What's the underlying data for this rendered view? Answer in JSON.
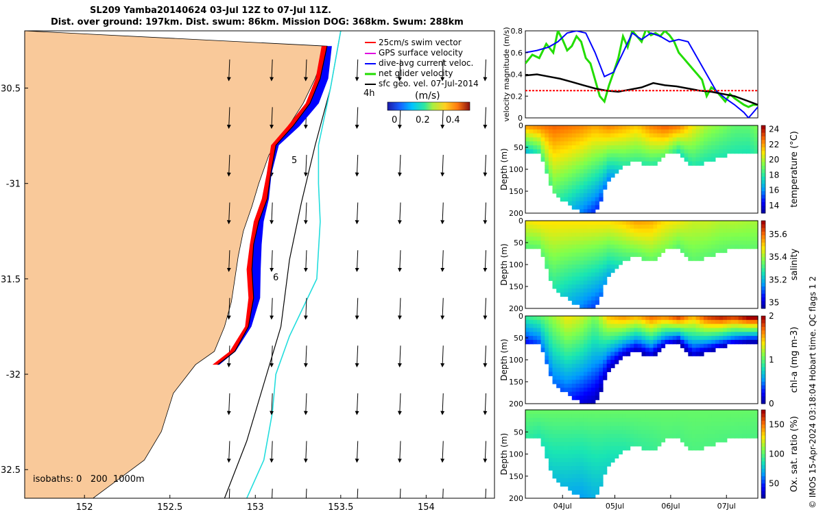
{
  "title": {
    "line1": "SL209 Yamba20140624 03-Jul 12Z to 07-Jul 11Z.",
    "line2": "Dist. over ground: 197km. Dist. swum: 86km. Mission DOG: 368km. Swum: 288km"
  },
  "colors": {
    "land": "#f9c99a",
    "ocean": "#ffffff",
    "swim": "#ff0000",
    "gps": "#e000e0",
    "dive_avg": "#0000ff",
    "net": "#22dd00",
    "sfc_geo": "#000000",
    "isobath_200": "#000000",
    "isobath_1000": "#22dddd"
  },
  "chart_data": [
    {
      "id": "map",
      "type": "scatter",
      "title": "SL209 Yamba20140624 03-Jul 12Z to 07-Jul 11Z.",
      "xlim": [
        151.65,
        154.4
      ],
      "ylim": [
        -32.65,
        -30.2
      ],
      "x_ticks": [
        152,
        152.5,
        153,
        153.5,
        154
      ],
      "y_ticks": [
        -30.5,
        -31,
        -31.5,
        -32,
        -32.5
      ],
      "x_tick_labels": [
        "152",
        "152.5",
        "153",
        "153.5",
        "154"
      ],
      "y_tick_labels": [
        "30.5",
        "-31",
        "31.5",
        "-32",
        "32.5"
      ],
      "legend": {
        "placement": "top-right",
        "entries": [
          "25cm/s swim vector",
          "GPS surface velocity",
          "dive-avg current veloc.",
          "net glider velocity",
          "sfc geo. vel. 07-Jul-2014"
        ]
      },
      "colorbar": {
        "label": "(m/s)",
        "ticks": [
          "0",
          "0.2",
          "0.4"
        ],
        "range": [
          0,
          0.5
        ]
      },
      "annotations": [
        "4h",
        "5",
        "6"
      ],
      "isobaths_label": "isobaths: 0   200  1000m",
      "coast": [
        [
          153.42,
          -30.28
        ],
        [
          153.35,
          -30.45
        ],
        [
          153.28,
          -30.58
        ],
        [
          153.18,
          -30.72
        ],
        [
          153.08,
          -30.85
        ],
        [
          153.02,
          -31.0
        ],
        [
          152.98,
          -31.12
        ],
        [
          152.93,
          -31.25
        ],
        [
          152.9,
          -31.38
        ],
        [
          152.88,
          -31.5
        ],
        [
          152.86,
          -31.62
        ],
        [
          152.82,
          -31.75
        ],
        [
          152.76,
          -31.88
        ],
        [
          152.65,
          -31.95
        ],
        [
          152.52,
          -32.1
        ],
        [
          152.45,
          -32.3
        ],
        [
          152.35,
          -32.45
        ],
        [
          152.2,
          -32.55
        ],
        [
          152.05,
          -32.65
        ]
      ],
      "track": [
        [
          153.42,
          -30.28
        ],
        [
          153.38,
          -30.45
        ],
        [
          153.32,
          -30.58
        ],
        [
          153.22,
          -30.7
        ],
        [
          153.12,
          -30.8
        ],
        [
          153.09,
          -30.95
        ],
        [
          153.07,
          -31.08
        ],
        [
          153.02,
          -31.2
        ],
        [
          152.99,
          -31.32
        ],
        [
          152.98,
          -31.45
        ],
        [
          152.99,
          -31.6
        ],
        [
          152.96,
          -31.75
        ],
        [
          152.88,
          -31.88
        ],
        [
          152.78,
          -31.95
        ]
      ],
      "isobath_200": [
        [
          153.5,
          -30.2
        ],
        [
          153.44,
          -30.5
        ],
        [
          153.35,
          -30.8
        ],
        [
          153.27,
          -31.1
        ],
        [
          153.2,
          -31.4
        ],
        [
          153.15,
          -31.75
        ],
        [
          153.05,
          -32.05
        ],
        [
          152.95,
          -32.35
        ],
        [
          152.82,
          -32.65
        ]
      ],
      "isobath_1000": [
        [
          153.5,
          -30.2
        ],
        [
          153.44,
          -30.5
        ],
        [
          153.37,
          -30.8
        ],
        [
          153.37,
          -31.0
        ],
        [
          153.38,
          -31.2
        ],
        [
          153.36,
          -31.5
        ],
        [
          153.2,
          -31.8
        ],
        [
          153.12,
          -32.0
        ],
        [
          153.1,
          -32.2
        ],
        [
          153.05,
          -32.45
        ],
        [
          152.95,
          -32.65
        ]
      ],
      "geo_vectors": {
        "lon": [
          152.85,
          153.1,
          153.3,
          153.6,
          153.85,
          154.1,
          154.35
        ],
        "lat": [
          -30.35,
          -30.6,
          -30.85,
          -31.1,
          -31.35,
          -31.6,
          -31.85,
          -32.1,
          -32.35,
          -32.6
        ],
        "u": -0.02,
        "v": -0.35
      }
    },
    {
      "id": "velocity",
      "type": "line",
      "ylabel": "velocity magnitude (m/s)",
      "xlim": [
        0,
        100
      ],
      "ylim": [
        0,
        0.8
      ],
      "y_ticks": [
        0,
        0.2,
        0.4,
        0.6,
        0.8
      ],
      "y_tick_labels": [
        "0",
        "0.2",
        "0.4",
        "0.6",
        "0.8"
      ],
      "series": [
        {
          "color": "#22dd00",
          "x": [
            0,
            3,
            6,
            9,
            12,
            14,
            16,
            18,
            20,
            22,
            24,
            26,
            28,
            30,
            32,
            34,
            36,
            38,
            40,
            42,
            44,
            46,
            48,
            50,
            52,
            54,
            56,
            58,
            60,
            62,
            64,
            66,
            68,
            70,
            72,
            74,
            76,
            78,
            80,
            82,
            84,
            86,
            88,
            90,
            92,
            94,
            96,
            98,
            100
          ],
          "y": [
            0.5,
            0.58,
            0.55,
            0.68,
            0.6,
            0.8,
            0.72,
            0.62,
            0.66,
            0.75,
            0.7,
            0.55,
            0.5,
            0.35,
            0.2,
            0.15,
            0.3,
            0.42,
            0.55,
            0.75,
            0.65,
            0.8,
            0.75,
            0.7,
            0.82,
            0.76,
            0.78,
            0.75,
            0.8,
            0.76,
            0.7,
            0.6,
            0.55,
            0.5,
            0.45,
            0.4,
            0.35,
            0.2,
            0.28,
            0.25,
            0.2,
            0.15,
            0.22,
            0.18,
            0.15,
            0.12,
            0.1,
            0.12,
            0.12
          ]
        },
        {
          "color": "#0000ff",
          "x": [
            0,
            5,
            10,
            14,
            18,
            22,
            26,
            30,
            34,
            38,
            42,
            46,
            50,
            54,
            58,
            62,
            66,
            70,
            74,
            78,
            82,
            86,
            90,
            94,
            96,
            98,
            100
          ],
          "y": [
            0.6,
            0.62,
            0.65,
            0.7,
            0.78,
            0.8,
            0.78,
            0.6,
            0.38,
            0.42,
            0.6,
            0.78,
            0.72,
            0.78,
            0.75,
            0.7,
            0.72,
            0.7,
            0.55,
            0.4,
            0.25,
            0.18,
            0.12,
            0.05,
            0.0,
            0.05,
            0.1
          ]
        },
        {
          "color": "#000000",
          "x": [
            0,
            5,
            10,
            15,
            20,
            25,
            30,
            35,
            40,
            45,
            50,
            55,
            60,
            65,
            70,
            75,
            80,
            85,
            90,
            95,
            100
          ],
          "y": [
            0.39,
            0.4,
            0.38,
            0.36,
            0.33,
            0.3,
            0.27,
            0.25,
            0.24,
            0.26,
            0.28,
            0.32,
            0.3,
            0.29,
            0.27,
            0.25,
            0.24,
            0.22,
            0.2,
            0.16,
            0.12
          ]
        },
        {
          "color": "#ff0000",
          "x": [
            0,
            100
          ],
          "y": [
            0.25,
            0.25
          ]
        }
      ]
    },
    {
      "id": "temperature",
      "type": "heatmap",
      "ylabel": "Depth (m)",
      "clabel": "temperature (°C)",
      "ylim": [
        200,
        0
      ],
      "y_ticks": [
        0,
        50,
        100,
        150,
        200
      ],
      "c_ticks": [
        "14",
        "16",
        "18",
        "20",
        "22",
        "24"
      ],
      "crange": [
        13,
        24.5
      ],
      "profile": {
        "x": [
          0,
          6,
          12,
          18,
          24,
          30,
          36,
          42,
          48,
          54,
          60,
          66,
          72,
          78,
          84,
          90,
          96,
          100
        ],
        "maxdepth": [
          55,
          60,
          145,
          175,
          195,
          195,
          120,
          90,
          75,
          90,
          65,
          55,
          90,
          78,
          68,
          60,
          55,
          55
        ],
        "surf": [
          22,
          22.5,
          23,
          22.8,
          22.5,
          22,
          22.5,
          22,
          21.5,
          22.5,
          23,
          22.5,
          21,
          20,
          19.5,
          19,
          19,
          19.5
        ],
        "deep": [
          17,
          18,
          19,
          17.5,
          16,
          15,
          16,
          18,
          18.5,
          18,
          19,
          18,
          18,
          18,
          18,
          18,
          18,
          18.5
        ]
      }
    },
    {
      "id": "salinity",
      "type": "heatmap",
      "ylabel": "Depth (m)",
      "clabel": "salinity",
      "ylim": [
        200,
        0
      ],
      "y_ticks": [
        0,
        50,
        100,
        150,
        200
      ],
      "c_ticks": [
        "35",
        "35.2",
        "35.4",
        "35.6"
      ],
      "crange": [
        34.95,
        35.72
      ],
      "profile": {
        "x": [
          0,
          6,
          12,
          18,
          24,
          30,
          36,
          42,
          48,
          54,
          60,
          66,
          72,
          78,
          84,
          90,
          96,
          100
        ],
        "maxdepth": [
          55,
          60,
          145,
          175,
          195,
          195,
          120,
          90,
          75,
          90,
          65,
          55,
          90,
          78,
          68,
          60,
          55,
          55
        ],
        "surf": [
          35.48,
          35.5,
          35.5,
          35.5,
          35.5,
          35.5,
          35.5,
          35.52,
          35.56,
          35.55,
          35.5,
          35.48,
          35.45,
          35.45,
          35.43,
          35.43,
          35.42,
          35.42
        ],
        "deep": [
          35.35,
          35.35,
          35.3,
          35.22,
          35.15,
          35.1,
          35.2,
          35.3,
          35.35,
          35.35,
          35.38,
          35.35,
          35.35,
          35.35,
          35.35,
          35.35,
          35.36,
          35.36
        ]
      }
    },
    {
      "id": "chla",
      "type": "heatmap",
      "ylabel": "Depth (m)",
      "clabel": "chl-a (mg m-3)",
      "ylim": [
        200,
        0
      ],
      "y_ticks": [
        0,
        50,
        100,
        150,
        200
      ],
      "c_ticks": [
        "0",
        "1",
        "2"
      ],
      "crange": [
        0,
        2
      ],
      "profile": {
        "x": [
          0,
          6,
          12,
          18,
          24,
          30,
          36,
          42,
          48,
          54,
          60,
          66,
          72,
          78,
          84,
          90,
          96,
          100
        ],
        "maxdepth": [
          55,
          60,
          145,
          175,
          195,
          195,
          120,
          90,
          75,
          90,
          65,
          55,
          90,
          78,
          68,
          60,
          55,
          55
        ],
        "surf": [
          0.9,
          1.0,
          1.2,
          1.4,
          1.3,
          1.1,
          1.5,
          1.6,
          1.5,
          1.7,
          1.6,
          1.8,
          1.5,
          1.8,
          1.9,
          1.8,
          2.0,
          2.0
        ],
        "deep": [
          0.3,
          0.4,
          0.5,
          0.4,
          0.2,
          0.1,
          0.1,
          0.1,
          0.1,
          0.1,
          0.1,
          0.1,
          0.1,
          0.1,
          0.1,
          0.1,
          0.1,
          0.1
        ]
      }
    },
    {
      "id": "oxygen",
      "type": "heatmap",
      "ylabel": "Depth (m)",
      "clabel": "Ox. sat. ratio (%)",
      "ylim": [
        200,
        0
      ],
      "y_ticks": [
        50,
        100,
        150,
        200
      ],
      "c_ticks": [
        "50",
        "100",
        "150"
      ],
      "crange": [
        25,
        175
      ],
      "x_tick_labels": [
        "04Jul",
        "05Jul",
        "06Jul",
        "07Jul"
      ],
      "x_ticks": [
        16,
        38.5,
        62.5,
        86.5
      ],
      "profile": {
        "x": [
          0,
          6,
          12,
          18,
          24,
          30,
          36,
          42,
          48,
          54,
          60,
          66,
          72,
          78,
          84,
          90,
          96,
          100
        ],
        "maxdepth": [
          55,
          60,
          145,
          175,
          195,
          195,
          120,
          90,
          75,
          90,
          65,
          55,
          90,
          78,
          68,
          60,
          55,
          55
        ],
        "surf": [
          105,
          105,
          105,
          105,
          105,
          105,
          105,
          105,
          105,
          105,
          105,
          105,
          105,
          105,
          105,
          105,
          105,
          105
        ],
        "deep": [
          95,
          90,
          80,
          75,
          70,
          75,
          85,
          90,
          95,
          95,
          100,
          100,
          100,
          100,
          100,
          100,
          100,
          100
        ]
      }
    }
  ],
  "footer": "© IMOS 15-Apr-2024 03:18:04 Hobart time. QC flags 1  2"
}
